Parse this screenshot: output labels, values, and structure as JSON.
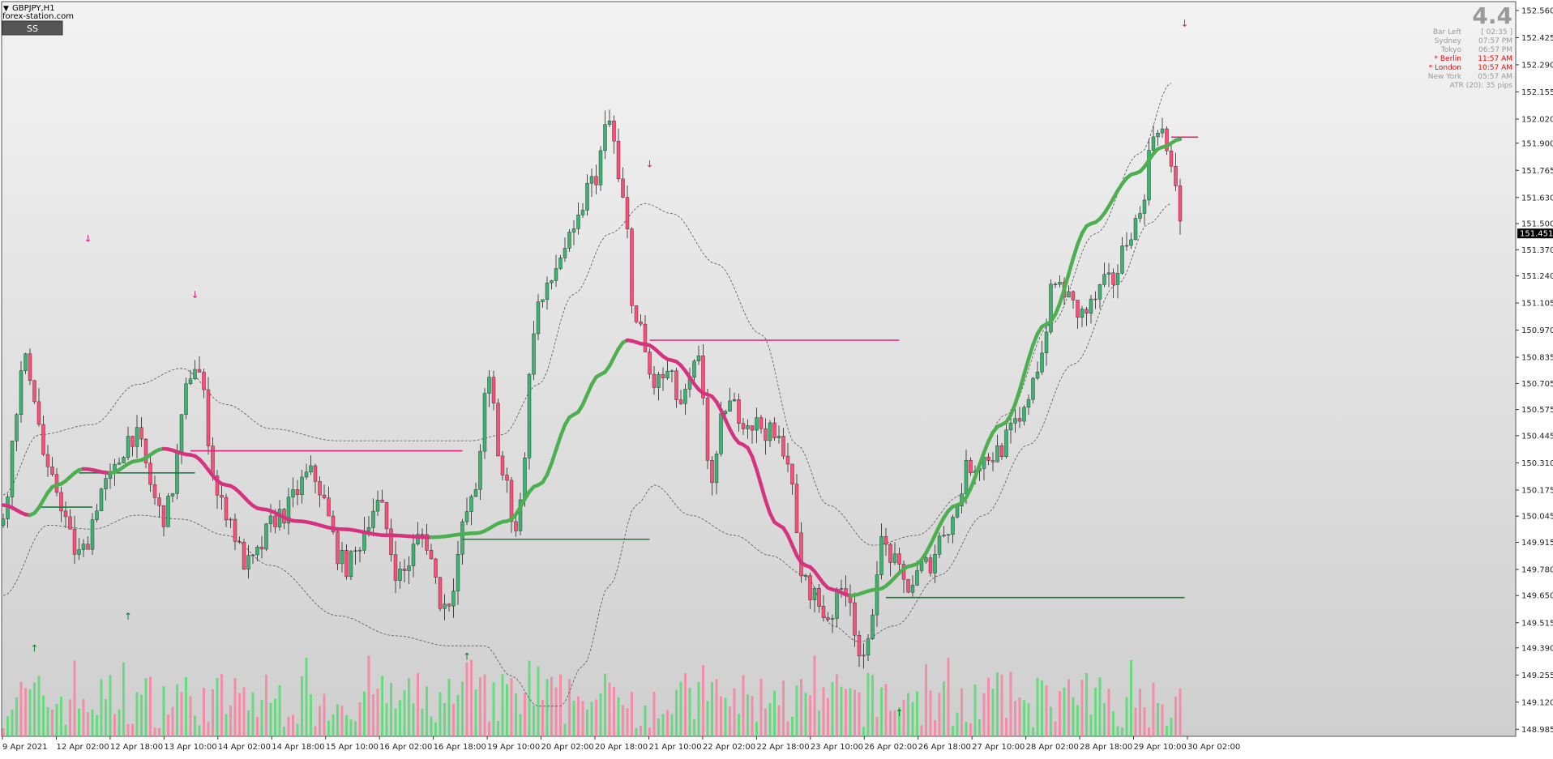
{
  "symbol_label": "GBPJPY,H1",
  "watermark": "forex-station.com",
  "ss_button": "SS",
  "big_value": "4.4",
  "info_panel": [
    {
      "label": "Bar Left",
      "value": "[ 02:35 ]",
      "color": "#999999"
    },
    {
      "label": "Sydney",
      "value": "07:57 PM",
      "color": "#999999"
    },
    {
      "label": "Tokyo",
      "value": "06:57 PM",
      "color": "#999999"
    },
    {
      "label": "* Berlin",
      "value": "11:57 AM",
      "color": "#ff0000"
    },
    {
      "label": "* London",
      "value": "10:57 AM",
      "color": "#ff0000"
    },
    {
      "label": "New York",
      "value": "05:57 AM",
      "color": "#999999"
    },
    {
      "label": "ATR (20): 35 pips",
      "value": "",
      "color": "#999999"
    }
  ],
  "colors": {
    "bull": "#3cb371",
    "bear": "#ff4d7a",
    "wick": "#222222",
    "ma_up": "#4caf50",
    "ma_down": "#d6337f",
    "band": "#555555",
    "vol_up": "#44dd66",
    "vol_down": "#ff7799",
    "level_pink": "#e0207a",
    "level_green": "#1a7a3a"
  },
  "chart_data": {
    "type": "candlestick",
    "symbol": "GBPJPY",
    "timeframe": "H1",
    "current_price": 151.451,
    "ylim": [
      148.95,
      152.6
    ],
    "y_ticks": [
      "152.560",
      "152.425",
      "152.290",
      "152.155",
      "152.020",
      "151.900",
      "151.765",
      "151.630",
      "151.500",
      "151.370",
      "151.240",
      "151.105",
      "150.970",
      "150.835",
      "150.705",
      "150.575",
      "150.445",
      "150.310",
      "150.175",
      "150.045",
      "149.915",
      "149.780",
      "149.650",
      "149.515",
      "149.390",
      "149.255",
      "149.120",
      "148.985"
    ],
    "x_ticks": [
      "9 Apr 2021",
      "12 Apr 02:00",
      "12 Apr 18:00",
      "13 Apr 10:00",
      "14 Apr 02:00",
      "14 Apr 18:00",
      "15 Apr 10:00",
      "16 Apr 02:00",
      "16 Apr 18:00",
      "19 Apr 10:00",
      "20 Apr 02:00",
      "20 Apr 18:00",
      "21 Apr 10:00",
      "22 Apr 02:00",
      "22 Apr 18:00",
      "23 Apr 10:00",
      "26 Apr 02:00",
      "26 Apr 18:00",
      "27 Apr 10:00",
      "28 Apr 02:00",
      "28 Apr 18:00",
      "29 Apr 10:00",
      "30 Apr 02:00"
    ],
    "bar_count": 265,
    "price_path": [
      [
        0,
        150.0
      ],
      [
        6,
        150.8
      ],
      [
        12,
        150.2
      ],
      [
        18,
        149.85
      ],
      [
        24,
        150.2
      ],
      [
        30,
        150.45
      ],
      [
        37,
        150.05
      ],
      [
        44,
        150.8
      ],
      [
        50,
        150.1
      ],
      [
        56,
        149.8
      ],
      [
        63,
        150.05
      ],
      [
        70,
        150.25
      ],
      [
        78,
        149.8
      ],
      [
        85,
        150.1
      ],
      [
        90,
        149.75
      ],
      [
        95,
        149.95
      ],
      [
        100,
        149.6
      ],
      [
        106,
        150.1
      ],
      [
        110,
        150.7
      ],
      [
        113,
        150.25
      ],
      [
        116,
        150.0
      ],
      [
        121,
        151.1
      ],
      [
        128,
        151.4
      ],
      [
        133,
        151.7
      ],
      [
        137,
        152.0
      ],
      [
        140,
        151.6
      ],
      [
        143,
        151.0
      ],
      [
        147,
        150.7
      ],
      [
        150,
        150.75
      ],
      [
        153,
        150.6
      ],
      [
        157,
        150.8
      ],
      [
        160,
        150.2
      ],
      [
        163,
        150.6
      ],
      [
        170,
        150.5
      ],
      [
        176,
        150.4
      ],
      [
        181,
        149.7
      ],
      [
        186,
        149.55
      ],
      [
        190,
        149.7
      ],
      [
        194,
        149.3
      ],
      [
        198,
        149.9
      ],
      [
        204,
        149.7
      ],
      [
        208,
        149.8
      ],
      [
        213,
        150.0
      ],
      [
        218,
        150.3
      ],
      [
        223,
        150.35
      ],
      [
        229,
        150.5
      ],
      [
        233,
        150.8
      ],
      [
        237,
        151.2
      ],
      [
        243,
        151.05
      ],
      [
        249,
        151.2
      ],
      [
        255,
        151.5
      ],
      [
        260,
        152.0
      ],
      [
        264,
        151.7
      ],
      [
        266,
        151.4
      ]
    ],
    "series": [
      {
        "name": "ma",
        "values": [
          [
            0,
            150.1
          ],
          [
            6,
            150.05
          ],
          [
            12,
            150.2
          ],
          [
            18,
            150.28
          ],
          [
            24,
            150.26
          ],
          [
            30,
            150.32
          ],
          [
            36,
            150.38
          ],
          [
            42,
            150.35
          ],
          [
            50,
            150.2
          ],
          [
            58,
            150.08
          ],
          [
            66,
            150.02
          ],
          [
            76,
            149.98
          ],
          [
            86,
            149.95
          ],
          [
            96,
            149.94
          ],
          [
            106,
            149.96
          ],
          [
            113,
            150.02
          ],
          [
            120,
            150.2
          ],
          [
            128,
            150.55
          ],
          [
            134,
            150.75
          ],
          [
            140,
            150.92
          ],
          [
            144,
            150.9
          ],
          [
            150,
            150.82
          ],
          [
            158,
            150.65
          ],
          [
            166,
            150.4
          ],
          [
            174,
            150.0
          ],
          [
            180,
            149.8
          ],
          [
            186,
            149.68
          ],
          [
            190,
            149.65
          ],
          [
            196,
            149.68
          ],
          [
            204,
            149.8
          ],
          [
            214,
            150.1
          ],
          [
            224,
            150.5
          ],
          [
            234,
            151.0
          ],
          [
            244,
            151.5
          ],
          [
            254,
            151.75
          ],
          [
            260,
            151.88
          ],
          [
            264,
            151.92
          ]
        ]
      },
      {
        "name": "band_upper",
        "values": [
          [
            0,
            150.15
          ],
          [
            8,
            150.45
          ],
          [
            20,
            150.5
          ],
          [
            30,
            150.7
          ],
          [
            40,
            150.78
          ],
          [
            50,
            150.6
          ],
          [
            60,
            150.48
          ],
          [
            75,
            150.42
          ],
          [
            90,
            150.42
          ],
          [
            105,
            150.42
          ],
          [
            112,
            150.45
          ],
          [
            120,
            150.7
          ],
          [
            128,
            151.15
          ],
          [
            136,
            151.45
          ],
          [
            144,
            151.6
          ],
          [
            150,
            151.55
          ],
          [
            160,
            151.3
          ],
          [
            170,
            150.95
          ],
          [
            178,
            150.4
          ],
          [
            185,
            150.1
          ],
          [
            195,
            149.9
          ],
          [
            205,
            149.95
          ],
          [
            215,
            150.15
          ],
          [
            225,
            150.55
          ],
          [
            235,
            151.0
          ],
          [
            245,
            151.45
          ],
          [
            255,
            151.85
          ],
          [
            262,
            152.2
          ]
        ]
      },
      {
        "name": "band_lower",
        "values": [
          [
            0,
            149.65
          ],
          [
            10,
            150.0
          ],
          [
            20,
            149.98
          ],
          [
            30,
            150.05
          ],
          [
            40,
            150.03
          ],
          [
            50,
            149.95
          ],
          [
            60,
            149.8
          ],
          [
            75,
            149.55
          ],
          [
            88,
            149.45
          ],
          [
            100,
            149.4
          ],
          [
            108,
            149.4
          ],
          [
            114,
            149.25
          ],
          [
            120,
            149.1
          ],
          [
            125,
            149.1
          ],
          [
            130,
            149.3
          ],
          [
            136,
            149.7
          ],
          [
            142,
            150.1
          ],
          [
            146,
            150.2
          ],
          [
            154,
            150.05
          ],
          [
            164,
            149.95
          ],
          [
            172,
            149.85
          ],
          [
            180,
            149.75
          ],
          [
            186,
            149.5
          ],
          [
            192,
            149.42
          ],
          [
            200,
            149.5
          ],
          [
            210,
            149.75
          ],
          [
            220,
            150.05
          ],
          [
            230,
            150.4
          ],
          [
            240,
            150.8
          ],
          [
            250,
            151.2
          ],
          [
            257,
            151.5
          ],
          [
            262,
            151.6
          ]
        ]
      }
    ],
    "levels": [
      {
        "price": 150.92,
        "from": 145,
        "to": 201,
        "color": "pink"
      },
      {
        "price": 150.37,
        "from": 42,
        "to": 103,
        "color": "pink"
      },
      {
        "price": 150.26,
        "from": 17,
        "to": 43,
        "color": "green"
      },
      {
        "price": 150.09,
        "from": 8,
        "to": 20,
        "color": "green"
      },
      {
        "price": 149.93,
        "from": 103,
        "to": 145,
        "color": "green"
      },
      {
        "price": 149.64,
        "from": 198,
        "to": 265,
        "color": "green"
      },
      {
        "price": 151.93,
        "from": 262,
        "to": 268,
        "color": "pink"
      }
    ],
    "arrows": [
      {
        "bar": 19,
        "price": 151.41,
        "dir": "down"
      },
      {
        "bar": 43,
        "price": 151.13,
        "dir": "down"
      },
      {
        "bar": 145,
        "price": 151.78,
        "dir": "down"
      },
      {
        "bar": 265,
        "price": 152.48,
        "dir": "down"
      },
      {
        "bar": 28,
        "price": 149.53,
        "dir": "up"
      },
      {
        "bar": 7,
        "price": 149.37,
        "dir": "up"
      },
      {
        "bar": 104,
        "price": 149.33,
        "dir": "up"
      },
      {
        "bar": 201,
        "price": 149.05,
        "dir": "up"
      }
    ]
  }
}
